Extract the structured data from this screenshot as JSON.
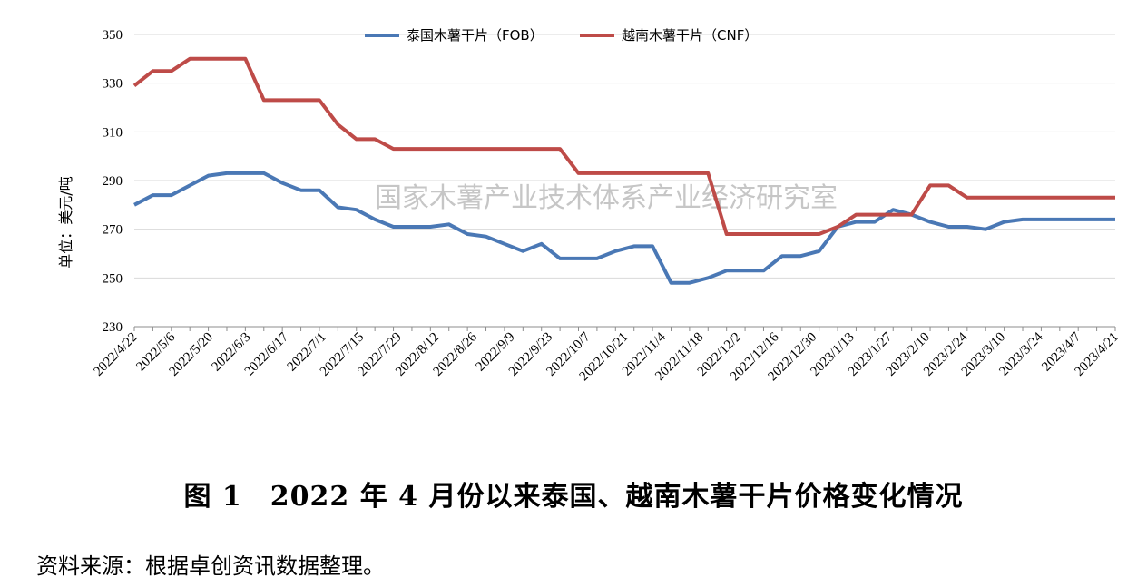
{
  "chart_data": {
    "type": "line",
    "ylabel": "单位：美元/吨",
    "ylim": [
      230,
      350
    ],
    "yticks": [
      230,
      250,
      270,
      290,
      310,
      330,
      350
    ],
    "grid": true,
    "legend_position": "top-center",
    "watermark": "国家木薯产业技术体系产业经济研究室",
    "x_tick_labels": [
      "2022/4/22",
      "2022/5/6",
      "2022/5/20",
      "2022/6/3",
      "2022/6/17",
      "2022/7/1",
      "2022/7/15",
      "2022/7/29",
      "2022/8/12",
      "2022/8/26",
      "2022/9/9",
      "2022/9/23",
      "2022/10/7",
      "2022/10/21",
      "2022/11/4",
      "2022/11/18",
      "2022/12/2",
      "2022/12/16",
      "2022/12/30",
      "2023/1/13",
      "2023/1/27",
      "2023/2/10",
      "2023/2/24",
      "2023/3/10",
      "2023/3/24",
      "2023/4/7",
      "2023/4/21"
    ],
    "series": [
      {
        "name": "泰国木薯干片（FOB）",
        "color": "#4a78b5",
        "values": [
          280,
          284,
          284,
          288,
          292,
          293,
          293,
          293,
          289,
          286,
          286,
          279,
          278,
          274,
          271,
          271,
          271,
          272,
          268,
          267,
          264,
          261,
          264,
          258,
          258,
          258,
          261,
          263,
          263,
          248,
          248,
          250,
          253,
          253,
          253,
          259,
          259,
          261,
          271,
          273,
          273,
          278,
          276,
          273,
          271,
          271,
          270,
          273,
          274,
          274,
          274,
          274,
          274,
          274
        ]
      },
      {
        "name": "越南木薯干片（CNF）",
        "color": "#be4b48",
        "values": [
          329,
          335,
          335,
          340,
          340,
          340,
          340,
          323,
          323,
          323,
          323,
          313,
          307,
          307,
          303,
          303,
          303,
          303,
          303,
          303,
          303,
          303,
          303,
          303,
          293,
          293,
          293,
          293,
          293,
          293,
          293,
          293,
          268,
          268,
          268,
          268,
          268,
          268,
          271,
          276,
          276,
          276,
          276,
          288,
          288,
          283,
          283,
          283,
          283,
          283,
          283,
          283,
          283,
          283
        ]
      }
    ]
  },
  "caption": "图 1　2022 年 4 月份以来泰国、越南木薯干片价格变化情况",
  "source_note": "资料来源：根据卓创资讯数据整理。"
}
